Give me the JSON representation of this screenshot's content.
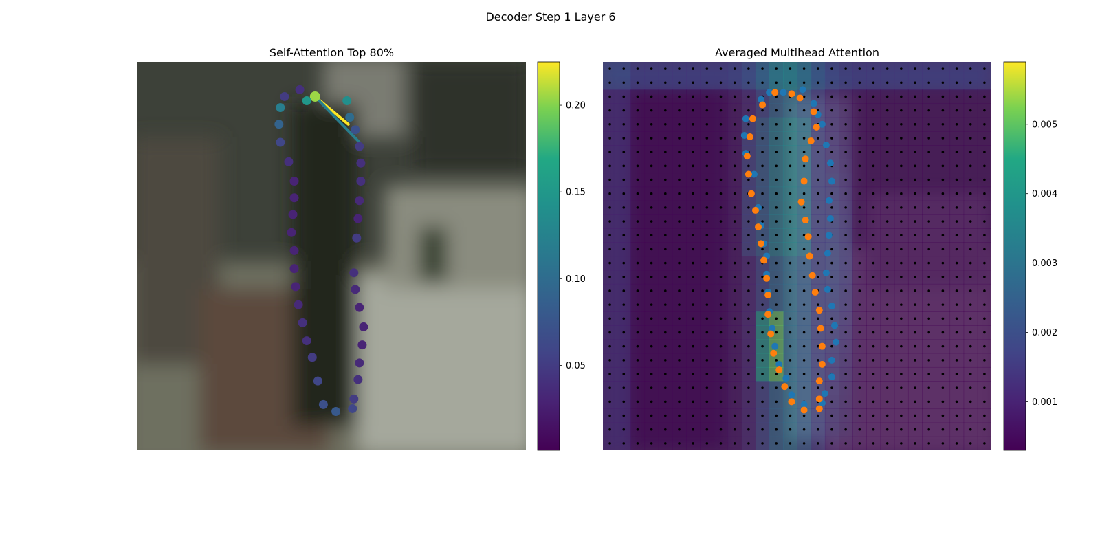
{
  "figure": {
    "title": "Decoder Step 1 Layer 6"
  },
  "chart_data": [
    {
      "type": "scatter",
      "title": "Self-Attention Top 80%",
      "description_of_background": "blurred photo crop",
      "xlim": [
        0,
        28
      ],
      "ylim": [
        28,
        0
      ],
      "colormap": "viridis",
      "colorbar": {
        "ticks": [
          0.05,
          0.1,
          0.15,
          0.2
        ],
        "tick_labels": [
          "0.05",
          "0.10",
          "0.15",
          "0.20"
        ],
        "range": [
          0.001,
          0.225
        ]
      },
      "points": [
        {
          "x": 12.8,
          "y": 2.5,
          "v": 0.205
        },
        {
          "x": 15.1,
          "y": 2.8,
          "v": 0.14
        },
        {
          "x": 15.3,
          "y": 4.0,
          "v": 0.1
        },
        {
          "x": 15.7,
          "y": 4.9,
          "v": 0.07
        },
        {
          "x": 16.0,
          "y": 6.1,
          "v": 0.05
        },
        {
          "x": 16.1,
          "y": 7.3,
          "v": 0.04
        },
        {
          "x": 16.1,
          "y": 8.6,
          "v": 0.04
        },
        {
          "x": 16.0,
          "y": 10.0,
          "v": 0.035
        },
        {
          "x": 15.9,
          "y": 11.3,
          "v": 0.03
        },
        {
          "x": 15.8,
          "y": 12.7,
          "v": 0.05
        },
        {
          "x": 15.6,
          "y": 15.2,
          "v": 0.04
        },
        {
          "x": 15.7,
          "y": 16.4,
          "v": 0.035
        },
        {
          "x": 16.0,
          "y": 17.7,
          "v": 0.03
        },
        {
          "x": 16.3,
          "y": 19.1,
          "v": 0.03
        },
        {
          "x": 16.2,
          "y": 20.4,
          "v": 0.03
        },
        {
          "x": 16.0,
          "y": 21.7,
          "v": 0.035
        },
        {
          "x": 15.9,
          "y": 22.9,
          "v": 0.04
        },
        {
          "x": 15.6,
          "y": 24.3,
          "v": 0.05
        },
        {
          "x": 15.5,
          "y": 25.0,
          "v": 0.06
        },
        {
          "x": 14.3,
          "y": 25.2,
          "v": 0.08
        },
        {
          "x": 13.4,
          "y": 24.7,
          "v": 0.07
        },
        {
          "x": 13.0,
          "y": 23.0,
          "v": 0.06
        },
        {
          "x": 12.6,
          "y": 21.3,
          "v": 0.05
        },
        {
          "x": 12.2,
          "y": 20.1,
          "v": 0.04
        },
        {
          "x": 11.9,
          "y": 18.8,
          "v": 0.04
        },
        {
          "x": 11.6,
          "y": 17.5,
          "v": 0.035
        },
        {
          "x": 11.4,
          "y": 16.2,
          "v": 0.03
        },
        {
          "x": 11.3,
          "y": 14.9,
          "v": 0.03
        },
        {
          "x": 11.3,
          "y": 13.6,
          "v": 0.03
        },
        {
          "x": 11.1,
          "y": 12.3,
          "v": 0.03
        },
        {
          "x": 11.2,
          "y": 11.0,
          "v": 0.03
        },
        {
          "x": 11.3,
          "y": 9.8,
          "v": 0.03
        },
        {
          "x": 11.3,
          "y": 8.6,
          "v": 0.03
        },
        {
          "x": 10.9,
          "y": 7.2,
          "v": 0.04
        },
        {
          "x": 10.3,
          "y": 5.8,
          "v": 0.06
        },
        {
          "x": 10.2,
          "y": 4.5,
          "v": 0.09
        },
        {
          "x": 10.3,
          "y": 3.3,
          "v": 0.12
        },
        {
          "x": 10.6,
          "y": 2.5,
          "v": 0.05
        },
        {
          "x": 11.7,
          "y": 2.0,
          "v": 0.04
        },
        {
          "x": 12.2,
          "y": 2.8,
          "v": 0.15
        }
      ],
      "attention_lines": [
        {
          "from": [
            12.8,
            2.5
          ],
          "to": [
            12.2,
            2.8
          ],
          "v": 0.15
        },
        {
          "from": [
            12.8,
            2.5
          ],
          "to": [
            15.2,
            4.5
          ],
          "v": 0.225
        },
        {
          "from": [
            12.8,
            2.5
          ],
          "to": [
            16.0,
            5.8
          ],
          "v": 0.12
        }
      ]
    },
    {
      "type": "heatmap",
      "title": "Averaged Multihead Attention",
      "xlim": [
        0,
        28
      ],
      "ylim": [
        28,
        0
      ],
      "colormap": "viridis",
      "colorbar": {
        "ticks": [
          0.001,
          0.002,
          0.003,
          0.004,
          0.005
        ],
        "tick_labels": [
          "0.001",
          "0.002",
          "0.003",
          "0.004",
          "0.005"
        ],
        "range": [
          0.0003,
          0.0059
        ]
      },
      "grid": {
        "rows": 28,
        "cols": 28
      },
      "series": [
        {
          "color": "#1f77b4",
          "points": [
            [
              11.4,
              2.7
            ],
            [
              12.0,
              2.2
            ],
            [
              13.0,
              2.2
            ],
            [
              14.4,
              2.0
            ],
            [
              15.2,
              3.0
            ],
            [
              15.5,
              3.8
            ],
            [
              15.8,
              4.5
            ],
            [
              16.1,
              6.0
            ],
            [
              16.4,
              7.3
            ],
            [
              16.5,
              8.6
            ],
            [
              16.3,
              10.0
            ],
            [
              16.4,
              11.3
            ],
            [
              16.3,
              12.5
            ],
            [
              16.2,
              13.8
            ],
            [
              16.1,
              15.2
            ],
            [
              16.2,
              16.4
            ],
            [
              16.5,
              17.6
            ],
            [
              16.7,
              19.0
            ],
            [
              16.8,
              20.2
            ],
            [
              16.5,
              21.5
            ],
            [
              16.5,
              22.7
            ],
            [
              16.0,
              23.9
            ],
            [
              15.8,
              24.6
            ],
            [
              14.5,
              24.7
            ],
            [
              13.6,
              24.0
            ],
            [
              13.2,
              22.8
            ],
            [
              12.7,
              21.8
            ],
            [
              12.4,
              20.5
            ],
            [
              12.2,
              19.2
            ],
            [
              12.0,
              18.0
            ],
            [
              11.9,
              16.6
            ],
            [
              11.8,
              15.3
            ],
            [
              11.8,
              14.0
            ],
            [
              11.6,
              13.1
            ],
            [
              11.4,
              11.8
            ],
            [
              11.2,
              10.5
            ],
            [
              10.9,
              8.1
            ],
            [
              10.3,
              6.6
            ],
            [
              10.2,
              5.3
            ],
            [
              10.3,
              4.1
            ]
          ]
        },
        {
          "color": "#ff7f0e",
          "points": [
            [
              11.5,
              3.1
            ],
            [
              12.4,
              2.2
            ],
            [
              13.6,
              2.3
            ],
            [
              14.2,
              2.6
            ],
            [
              15.2,
              3.6
            ],
            [
              15.4,
              4.7
            ],
            [
              15.0,
              5.7
            ],
            [
              14.6,
              7.0
            ],
            [
              14.5,
              8.6
            ],
            [
              14.3,
              10.1
            ],
            [
              14.6,
              11.4
            ],
            [
              14.8,
              12.6
            ],
            [
              14.9,
              14.0
            ],
            [
              15.1,
              15.4
            ],
            [
              15.3,
              16.6
            ],
            [
              15.6,
              17.9
            ],
            [
              15.7,
              19.2
            ],
            [
              15.8,
              20.5
            ],
            [
              15.8,
              21.8
            ],
            [
              15.6,
              23.0
            ],
            [
              15.6,
              24.3
            ],
            [
              15.6,
              25.0
            ],
            [
              14.5,
              25.1
            ],
            [
              13.6,
              24.5
            ],
            [
              13.1,
              23.4
            ],
            [
              12.7,
              22.2
            ],
            [
              12.3,
              21.0
            ],
            [
              12.1,
              19.6
            ],
            [
              11.9,
              18.2
            ],
            [
              11.9,
              16.8
            ],
            [
              11.8,
              15.6
            ],
            [
              11.6,
              14.3
            ],
            [
              11.4,
              13.1
            ],
            [
              11.2,
              11.9
            ],
            [
              11.0,
              10.7
            ],
            [
              10.7,
              9.5
            ],
            [
              10.5,
              8.1
            ],
            [
              10.4,
              6.8
            ],
            [
              10.6,
              5.4
            ],
            [
              10.8,
              4.1
            ]
          ]
        }
      ]
    }
  ]
}
